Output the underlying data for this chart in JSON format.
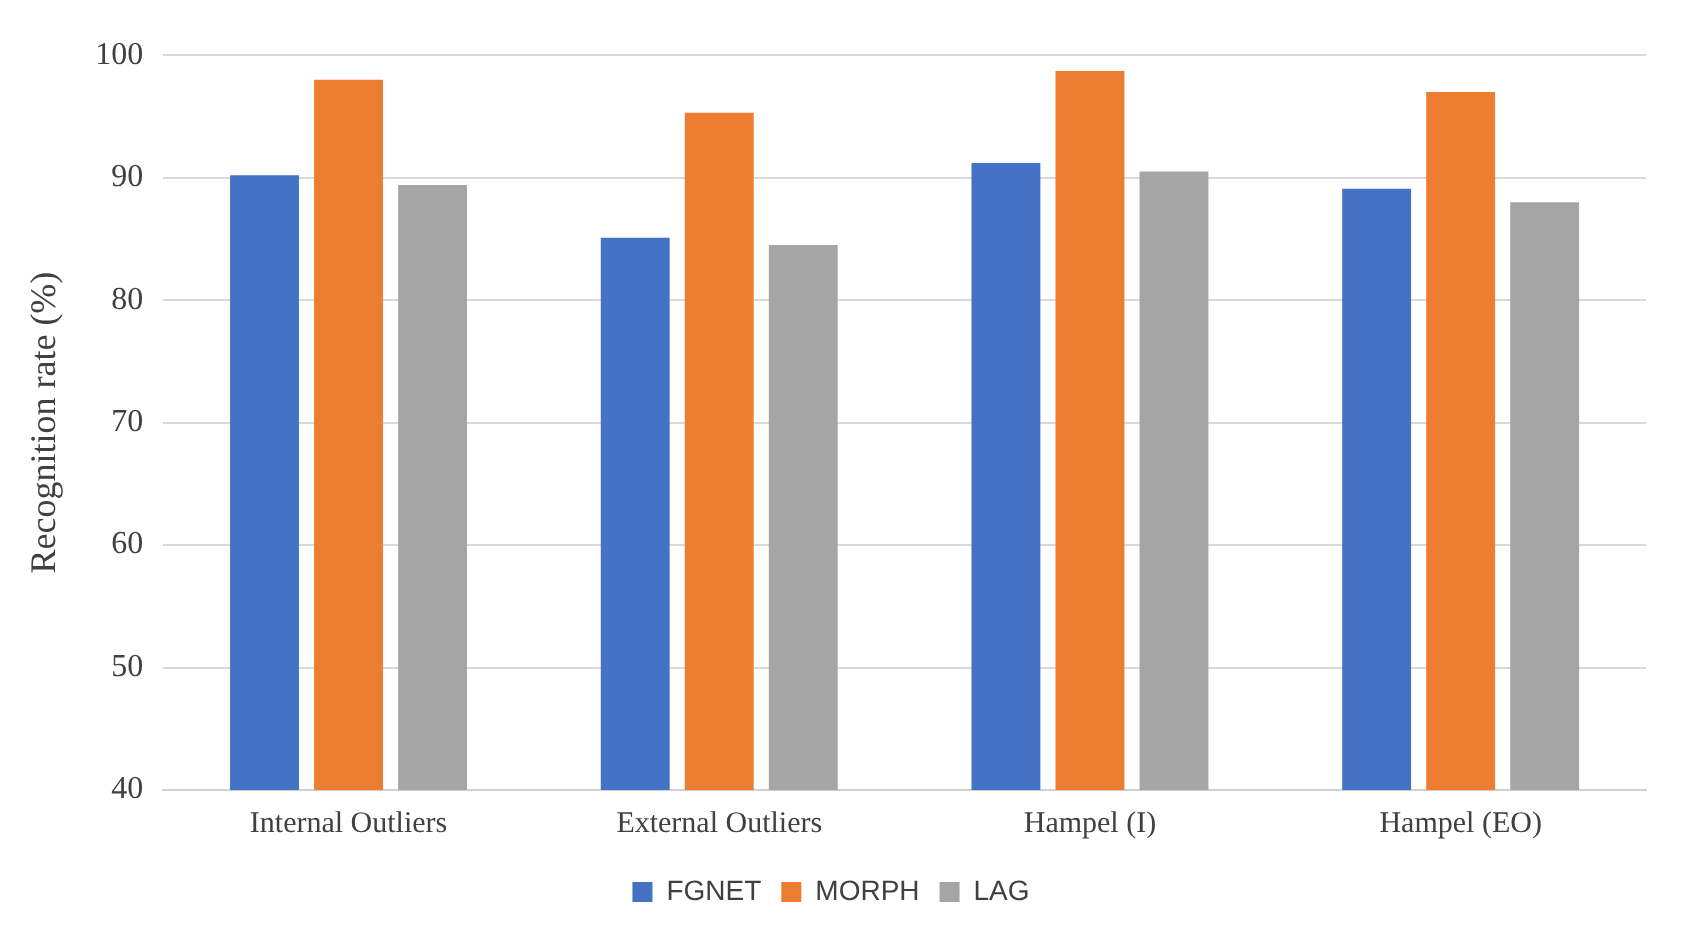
{
  "chart_data": {
    "type": "bar",
    "ylabel": "Recognition rate (%)",
    "categories": [
      "Internal Outliers",
      "External Outliers",
      "Hampel (I)",
      "Hampel (EO)"
    ],
    "series": [
      {
        "name": "FGNET",
        "color": "#4472c4",
        "values": [
          90.2,
          85.1,
          91.2,
          89.1
        ]
      },
      {
        "name": "MORPH",
        "color": "#ed7d31",
        "values": [
          98.0,
          95.3,
          98.7,
          97.0
        ]
      },
      {
        "name": "LAG",
        "color": "#a5a5a5",
        "values": [
          89.4,
          84.5,
          90.5,
          88.0
        ]
      }
    ],
    "ylim": [
      40,
      100
    ],
    "yticks": [
      40,
      50,
      60,
      70,
      80,
      90,
      100
    ],
    "grid": "y",
    "legend": "bottom"
  }
}
